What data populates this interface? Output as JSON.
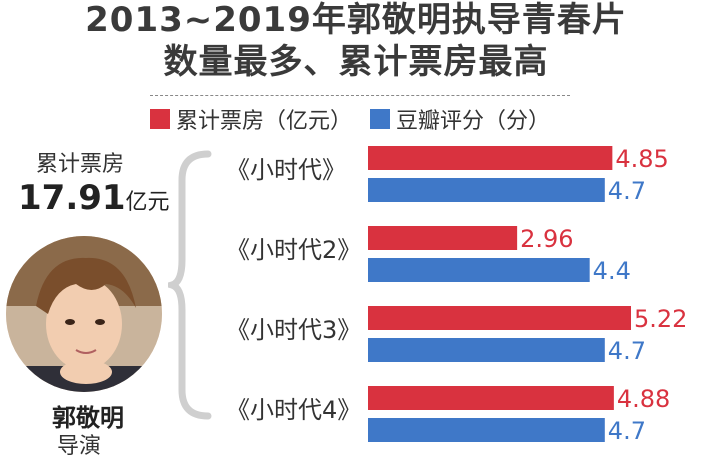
{
  "title": {
    "line1": "2013~2019年郭敬明执导青春片",
    "line2": "数量最多、累计票房最高"
  },
  "total_box_office": {
    "label": "累计票房",
    "value": "17.91",
    "unit": "亿元"
  },
  "director": {
    "name": "郭敬明",
    "role": "导演"
  },
  "colors": {
    "box_office": "#d9323f",
    "rating": "#3f78c8"
  },
  "chart_data": {
    "type": "bar",
    "orientation": "horizontal",
    "categories": [
      "《小时代》",
      "《小时代2》",
      "《小时代3》",
      "《小时代4》"
    ],
    "series": [
      {
        "name": "累计票房（亿元）",
        "color": "#d9323f",
        "values": [
          4.85,
          2.96,
          5.22,
          4.88
        ]
      },
      {
        "name": "豆瓣评分（分）",
        "color": "#3f78c8",
        "values": [
          4.7,
          4.4,
          4.7,
          4.7
        ]
      }
    ],
    "legend_position": "top",
    "grid": false,
    "xlim": [
      0,
      5.22
    ]
  }
}
